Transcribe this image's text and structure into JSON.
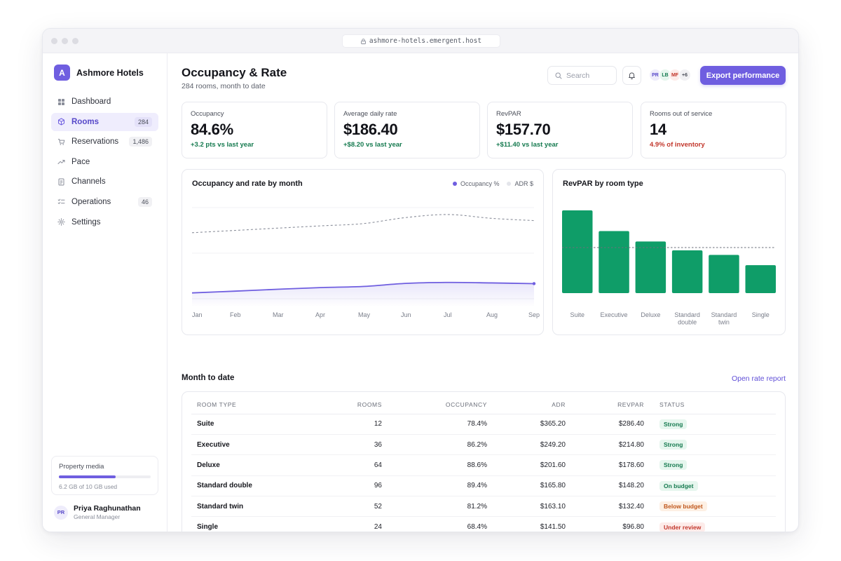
{
  "window": {
    "url": "ashmore-hotels.emergent.host"
  },
  "brand": {
    "logo_letter": "A",
    "name": "Ashmore Hotels",
    "accent": "#6f5ee0"
  },
  "sidebar": {
    "items": [
      {
        "label": "Dashboard",
        "icon": "grid-icon",
        "count": ""
      },
      {
        "label": "Rooms",
        "icon": "cube-icon",
        "count": "284",
        "active": true
      },
      {
        "label": "Reservations",
        "icon": "cart-icon",
        "count": "1,486"
      },
      {
        "label": "Pace",
        "icon": "trend-icon",
        "count": ""
      },
      {
        "label": "Channels",
        "icon": "document-icon",
        "count": ""
      },
      {
        "label": "Operations",
        "icon": "checklist-icon",
        "count": "46"
      },
      {
        "label": "Settings",
        "icon": "gear-icon",
        "count": ""
      }
    ],
    "storage": {
      "label": "Property media",
      "used_text": "6.2 GB of 10 GB used",
      "used_fraction": 0.62
    },
    "user": {
      "initials": "PR",
      "name": "Priya Raghunathan",
      "role": "General Manager"
    }
  },
  "header": {
    "title": "Occupancy & Rate",
    "subtitle": "284 rooms, month to date",
    "search_placeholder": "Search",
    "avatars": [
      "PR",
      "LB",
      "MF"
    ],
    "more_avatars": "+6",
    "export_label": "Export performance"
  },
  "kpis": [
    {
      "label": "Occupancy",
      "value": "84.6%",
      "delta": "+3.2 pts vs last year",
      "tone": "positive"
    },
    {
      "label": "Average daily rate",
      "value": "$186.40",
      "delta": "+$8.20 vs last year",
      "tone": "positive"
    },
    {
      "label": "RevPAR",
      "value": "$157.70",
      "delta": "+$11.40 vs last year",
      "tone": "positive"
    },
    {
      "label": "Rooms out of service",
      "value": "14",
      "delta": "4.9% of inventory",
      "tone": "negative"
    }
  ],
  "colors": {
    "positive": "#157a4f",
    "negative": "#c2362b",
    "bar": "#0f9d68",
    "line": "#6f5ee0",
    "dashed": "#8a8e9a"
  },
  "charts": {
    "line_title": "Occupancy and rate by month",
    "line_legend": [
      "Occupancy %",
      "ADR $"
    ],
    "bar_title": "RevPAR by room type"
  },
  "chart_data": [
    {
      "type": "line",
      "title": "Occupancy and rate by month",
      "categories": [
        "Jan",
        "Feb",
        "Mar",
        "Apr",
        "May",
        "Jun",
        "Jul",
        "Aug",
        "Sep"
      ],
      "series": [
        {
          "name": "Occupancy %",
          "values": [
            72.0,
            74.2,
            76.5,
            78.6,
            80.0,
            83.8,
            85.0,
            84.4,
            83.5
          ]
        },
        {
          "name": "ADR $",
          "values": [
            162,
            165,
            168,
            171,
            174,
            182,
            186,
            181,
            178
          ]
        }
      ]
    },
    {
      "type": "bar",
      "title": "RevPAR by room type",
      "categories": [
        "Suite",
        "Executive",
        "Deluxe",
        "Standard double",
        "Standard twin",
        "Single"
      ],
      "category_lines": [
        [
          "Suite"
        ],
        [
          "Executive"
        ],
        [
          "Deluxe"
        ],
        [
          "Standard",
          "double"
        ],
        [
          "Standard",
          "twin"
        ],
        [
          "Single"
        ]
      ],
      "values": [
        286.4,
        214.8,
        178.6,
        148.2,
        132.4,
        96.8
      ],
      "reference_line": 157.7,
      "ylim": [
        0,
        320
      ]
    }
  ],
  "table_section": {
    "title": "Month to date",
    "link": "Open rate report"
  },
  "table": {
    "columns": [
      "ROOM TYPE",
      "ROOMS",
      "OCCUPANCY",
      "ADR",
      "REVPAR",
      "STATUS"
    ],
    "rows": [
      [
        "Suite",
        "12",
        "78.4%",
        "$365.20",
        "$286.40",
        "Strong"
      ],
      [
        "Executive",
        "36",
        "86.2%",
        "$249.20",
        "$214.80",
        "Strong"
      ],
      [
        "Deluxe",
        "64",
        "88.6%",
        "$201.60",
        "$178.60",
        "Strong"
      ],
      [
        "Standard double",
        "96",
        "89.4%",
        "$165.80",
        "$148.20",
        "On budget"
      ],
      [
        "Standard twin",
        "52",
        "81.2%",
        "$163.10",
        "$132.40",
        "Below budget"
      ],
      [
        "Single",
        "24",
        "68.4%",
        "$141.50",
        "$96.80",
        "Under review"
      ]
    ],
    "status_colors": {
      "Strong": {
        "fg": "#157a4f",
        "bg": "#e6f6ee"
      },
      "On budget": {
        "fg": "#157a4f",
        "bg": "#e6f6ee"
      },
      "Below budget": {
        "fg": "#c0571c",
        "bg": "#fdf0e4"
      },
      "Under review": {
        "fg": "#c2362b",
        "bg": "#fdecea"
      }
    }
  }
}
